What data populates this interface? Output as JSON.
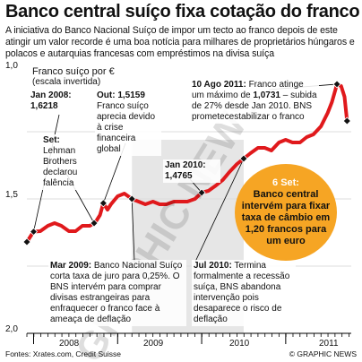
{
  "title": "Banco central suíço fixa cotação do franco",
  "subtitle": "A iniciativa do Banco Nacional Suíço de impor um tecto ao franco depois de este atingir um valor recorde é uma boa notícia para milhares de proprietários húngaros e polacos e autarquias francesas com empréstimos na divisa suíça",
  "series_label": "Franco suíço por €",
  "series_sublabel": "(escala invertida)",
  "credits": "Fontes: Xrates.com, Credit Suisse",
  "brand": "© GRAPHIC NEWS",
  "watermark": "GRAPHIC NEWS",
  "colors": {
    "line": "#e0191c",
    "callout": "#f6a524",
    "shade": "#e6e6e6",
    "grid": "#dcdcdc"
  },
  "annotations": [
    {
      "id": "jan2008",
      "date": "Jan 2008:",
      "value": "1,6218",
      "text": ""
    },
    {
      "id": "set2008",
      "date": "Set:",
      "text": "Lehman Brothers declarou falência"
    },
    {
      "id": "out2008",
      "date": "Out: 1,5159",
      "text": "Franco suíço aprecia devido à crise financeira global"
    },
    {
      "id": "jan2010",
      "date": "Jan 2010:",
      "value": "1,4765",
      "text": ""
    },
    {
      "id": "ago2011",
      "date": "10 Ago 2011:",
      "text_pre": "Franco atinge um máximo de",
      "value": "1,0731",
      "text": "– subida de 27% desde Jan 2010. BNS prometecestabilizar o franco"
    },
    {
      "id": "mar2009",
      "date": "Mar 2009:",
      "text": "Banco Nacional Suíço corta taxa de juro para 0,25%. O BNS intervém para comprar divisas estrangeiras para enfraquecer o franco face à ameaça de deflação"
    },
    {
      "id": "jul2010",
      "date": "Jul 2010:",
      "text": "Termina formalmente a recessão suíça, BNS abandona intervenção pois desaparece o risco de deflação"
    }
  ],
  "callout": {
    "date": "6 Set:",
    "text": "Banco central intervém para fixar taxa de câmbio em 1,20 francos para um euro"
  },
  "chart_data": {
    "type": "line",
    "title": "Banco central suíço fixa cotação do franco",
    "ylabel": "Franco suíço por €",
    "y_inverted": true,
    "ylim": [
      1.0,
      2.0
    ],
    "ytick_labels": [
      "1,0",
      "1,5",
      "2,0"
    ],
    "yticks": [
      1.0,
      1.5,
      2.0
    ],
    "x_axis_labels": [
      "2008",
      "2009",
      "2010",
      "2011"
    ],
    "xlim": [
      2007.92,
      2011.78
    ],
    "grid": true,
    "series": [
      {
        "x": [
          2007.92,
          2008.0,
          2008.08,
          2008.17,
          2008.25,
          2008.33,
          2008.42,
          2008.5,
          2008.58,
          2008.67,
          2008.72,
          2008.75,
          2008.79,
          2008.83,
          2008.88,
          2008.92,
          2009.0,
          2009.08,
          2009.17,
          2009.25,
          2009.33,
          2009.42,
          2009.5,
          2009.58,
          2009.67,
          2009.75,
          2009.83,
          2009.92,
          2010.0,
          2010.08,
          2010.17,
          2010.25,
          2010.33,
          2010.42,
          2010.5,
          2010.58,
          2010.67,
          2010.75,
          2010.83,
          2010.92,
          2011.0,
          2011.08,
          2011.17,
          2011.25,
          2011.33,
          2011.42,
          2011.5,
          2011.55,
          2011.61,
          2011.66,
          2011.7,
          2011.73
        ],
        "y": [
          1.66,
          1.6218,
          1.62,
          1.6,
          1.59,
          1.6,
          1.62,
          1.62,
          1.6,
          1.6,
          1.59,
          1.58,
          1.56,
          1.5159,
          1.54,
          1.52,
          1.49,
          1.48,
          1.5,
          1.51,
          1.52,
          1.51,
          1.52,
          1.52,
          1.51,
          1.51,
          1.51,
          1.5,
          1.4765,
          1.47,
          1.45,
          1.43,
          1.4,
          1.37,
          1.35,
          1.33,
          1.31,
          1.31,
          1.32,
          1.29,
          1.28,
          1.29,
          1.29,
          1.27,
          1.26,
          1.23,
          1.18,
          1.14,
          1.0731,
          1.08,
          1.12,
          1.21
        ]
      }
    ],
    "shaded_ranges": [
      [
        2009.17,
        2010.5
      ]
    ],
    "markers": [
      {
        "x": 2007.92,
        "y": 1.66
      },
      {
        "x": 2008.0,
        "y": 1.6218
      },
      {
        "x": 2008.72,
        "y": 1.59
      },
      {
        "x": 2008.83,
        "y": 1.5159
      },
      {
        "x": 2009.17,
        "y": 1.5
      },
      {
        "x": 2010.0,
        "y": 1.4765
      },
      {
        "x": 2010.5,
        "y": 1.35
      },
      {
        "x": 2011.61,
        "y": 1.0731
      },
      {
        "x": 2011.73,
        "y": 1.21
      }
    ]
  }
}
